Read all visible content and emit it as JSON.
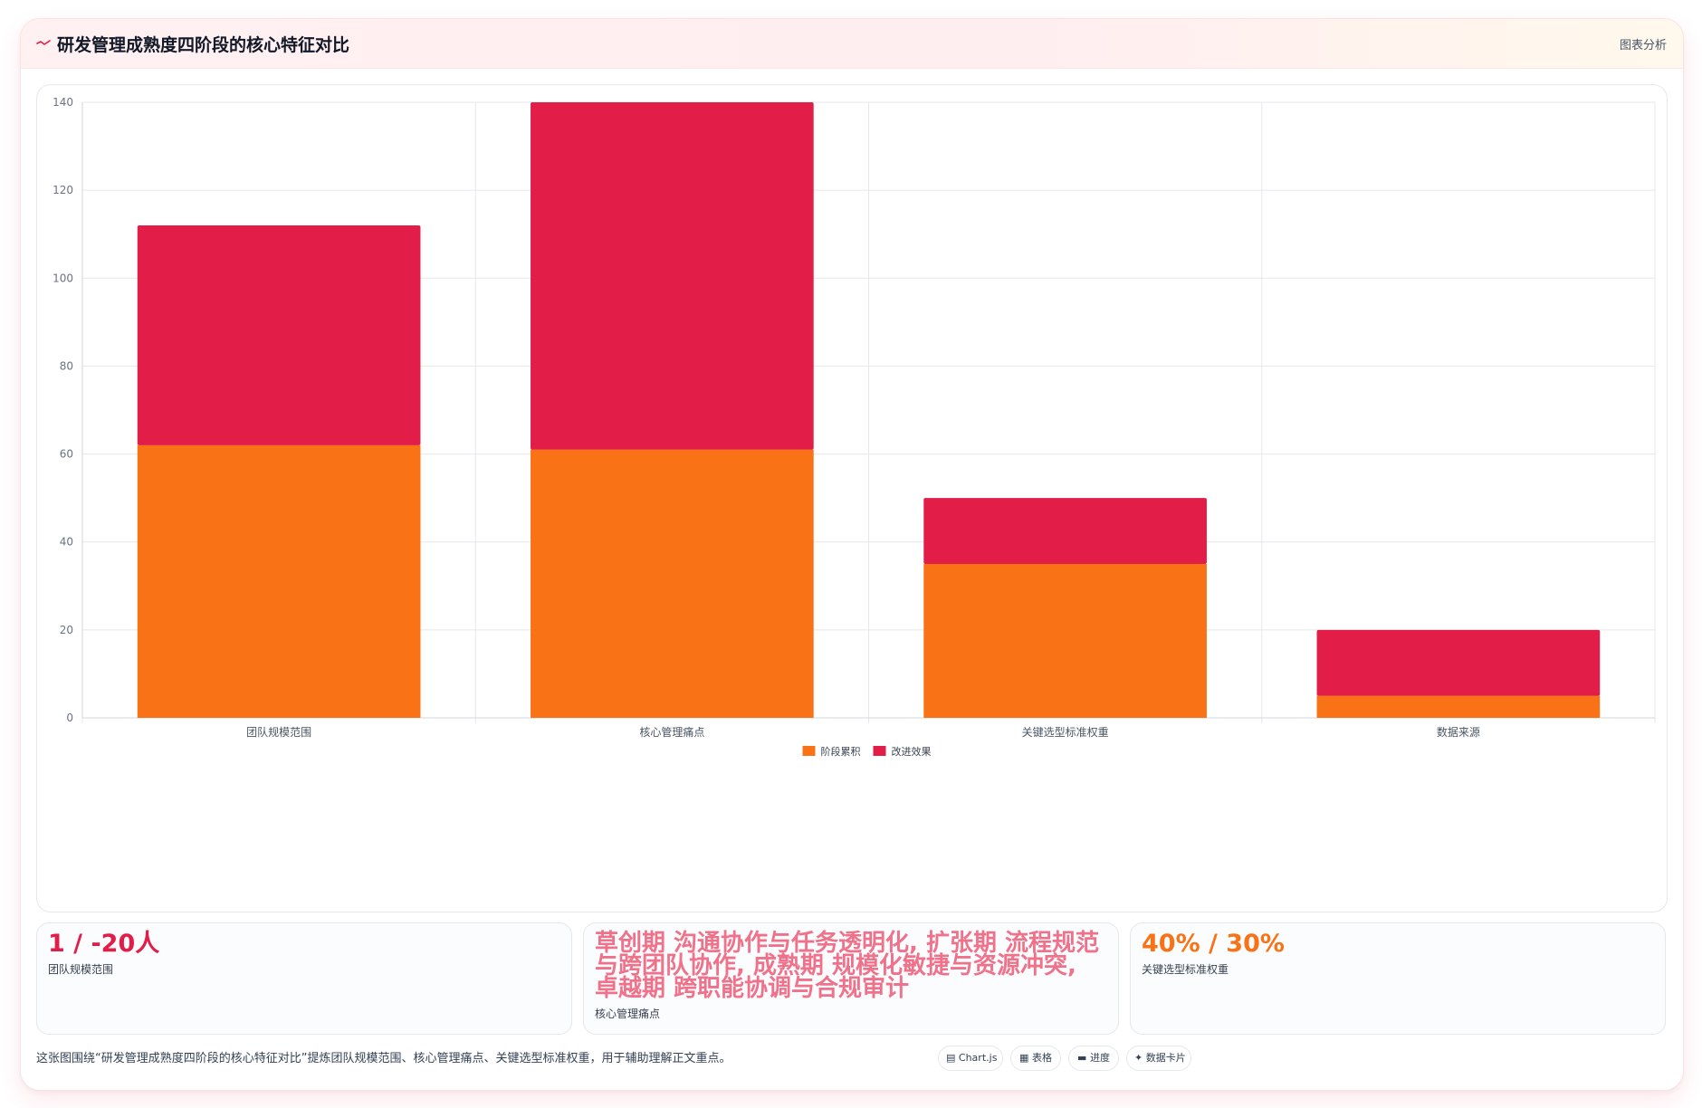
{
  "header": {
    "icon": "trend-line-icon",
    "title": "研发管理成熟度四阶段的核心特征对比",
    "analysis_label": "图表分析"
  },
  "chart_data": {
    "type": "bar",
    "stacked": true,
    "title": "",
    "xlabel": "",
    "ylabel": "",
    "categories": [
      "团队规模范围",
      "核心管理痛点",
      "关键选型标准权重",
      "数据来源"
    ],
    "series": [
      {
        "name": "阶段累积",
        "color": "#f97316",
        "values": [
          62,
          61,
          35,
          5
        ]
      },
      {
        "name": "改进效果",
        "color": "#e11d48",
        "values": [
          50,
          79,
          15,
          15
        ]
      }
    ],
    "ylim": [
      0,
      140
    ],
    "yticks": [
      0,
      20,
      40,
      60,
      80,
      100,
      120,
      140
    ],
    "grid": true,
    "legend": "bottom"
  },
  "cards": [
    {
      "value": "1 / -20人",
      "label": "团队规模范围",
      "color": "#e11d48"
    },
    {
      "value": "草创期 沟通协作与任务透明化, 扩张期 流程规范与跨团队协作, 成熟期 规模化敏捷与资源冲突, 卓越期 跨职能协调与合规审计",
      "label": "核心管理痛点",
      "color": "#f0728a"
    },
    {
      "value": "40% / 30%",
      "label": "关键选型标准权重",
      "color": "#f97316"
    }
  ],
  "footer": {
    "description": "这张图围绕“研发管理成熟度四阶段的核心特征对比”提炼团队规模范围、核心管理痛点、关键选型标准权重，用于辅助理解正文重点。"
  },
  "tags": [
    {
      "icon": "chart-icon",
      "glyph": "▤",
      "label": "Chart.js"
    },
    {
      "icon": "table-icon",
      "glyph": "▦",
      "label": "表格"
    },
    {
      "icon": "progress-icon",
      "glyph": "▬",
      "label": "进度"
    },
    {
      "icon": "sparkle-icon",
      "glyph": "✦",
      "label": "数据卡片"
    }
  ]
}
